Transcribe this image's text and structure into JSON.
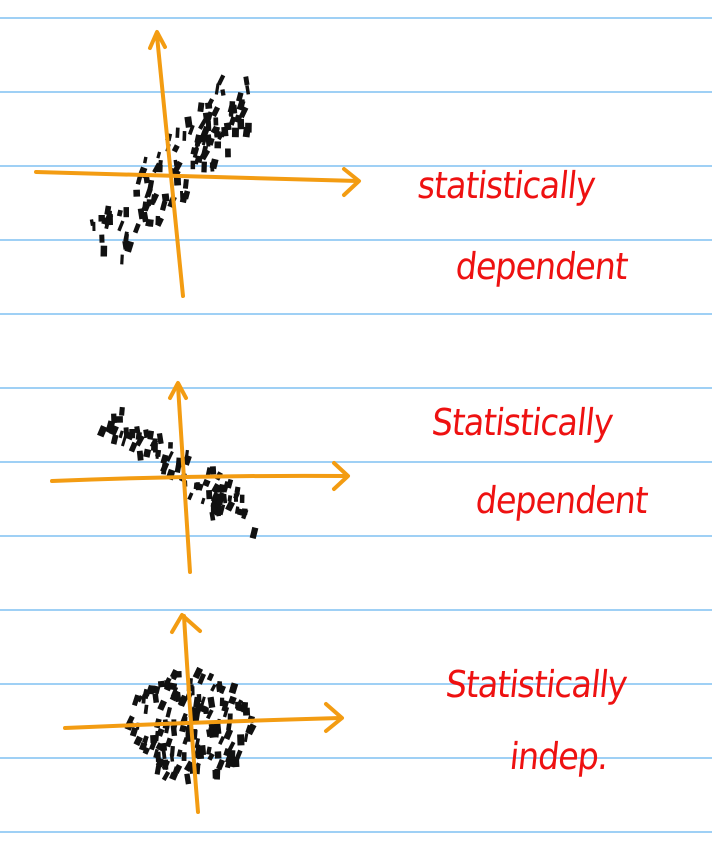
{
  "colors": {
    "ruled_line": "#9fd0f5",
    "axis": "#f39c12",
    "dots": "#111111",
    "label": "#ee1111",
    "paper": "#ffffff"
  },
  "panels": [
    {
      "id": "positive-correlation",
      "label_line1": "statistically",
      "label_line2": "dependent",
      "pattern": "positively correlated scatter along rising diagonal"
    },
    {
      "id": "negative-correlation",
      "label_line1": "Statistically",
      "label_line2": "dependent",
      "pattern": "negatively correlated scatter along falling diagonal"
    },
    {
      "id": "independent",
      "label_line1": "Statistically",
      "label_line2": "indep.",
      "pattern": "round cloud with no correlation"
    }
  ]
}
